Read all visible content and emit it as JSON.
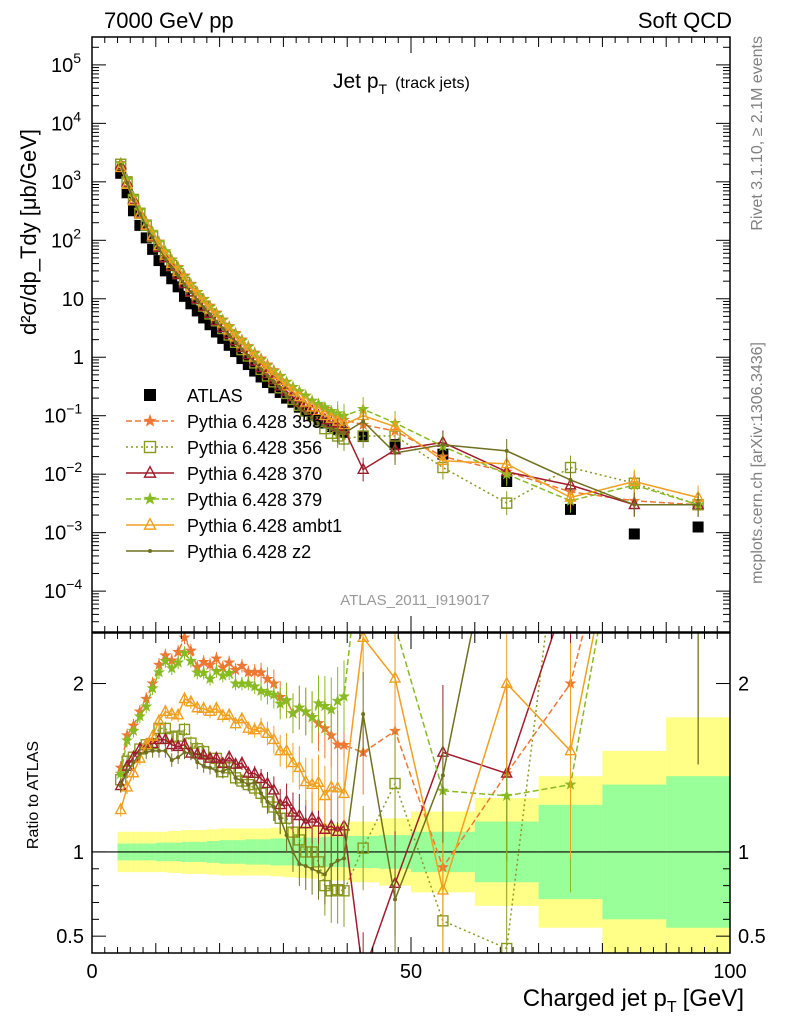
{
  "header": {
    "left": "7000 GeV pp",
    "right": "Soft QCD"
  },
  "side_labels": {
    "rivet": "Rivet 3.1.10, ≥ 2.1M events",
    "mcplots": "mcplots.cern.ch [arXiv:1306.3436]"
  },
  "chart_data": [
    {
      "type": "scatter",
      "panel": "main",
      "title": "Jet pT (track jets)",
      "title_main": "Jet p",
      "title_sub": "T",
      "title_note": "(track jets)",
      "ylabel": "d²σ/dp_Tdy [μb/GeV]",
      "yscale": "log",
      "ylim": [
        2e-05,
        300000
      ],
      "xlim": [
        0,
        100
      ],
      "analysis_label": "ATLAS_2011_I919017",
      "legend_position": "middle-left",
      "series": [
        {
          "name": "ATLAS",
          "color": "#000000",
          "marker": "square",
          "x": [
            4.5,
            5.5,
            6.5,
            7.5,
            8.5,
            9.5,
            10.5,
            11.5,
            12.5,
            13.5,
            14.5,
            15.5,
            16.5,
            17.5,
            18.5,
            19.5,
            20.5,
            21.5,
            22.5,
            23.5,
            24.5,
            25.5,
            26.5,
            27.5,
            28.5,
            29.5,
            30.5,
            31.5,
            32.5,
            33.5,
            34.5,
            35.5,
            36.5,
            37.5,
            38.5,
            39.5,
            42.5,
            47.5,
            55,
            65,
            75,
            85,
            95
          ],
          "y": [
            1400,
            650,
            320,
            180,
            110,
            70,
            45,
            30,
            22,
            16,
            11,
            8.2,
            6.2,
            4.7,
            3.6,
            2.7,
            2.1,
            1.6,
            1.25,
            0.95,
            0.75,
            0.58,
            0.46,
            0.37,
            0.3,
            0.25,
            0.2,
            0.17,
            0.14,
            0.12,
            0.1,
            0.085,
            0.075,
            0.065,
            0.058,
            0.052,
            0.044,
            0.032,
            0.022,
            0.0075,
            0.0025,
            0.00095,
            0.00125
          ]
        },
        {
          "name": "Pythia 6.428 355",
          "color": "#ee7733",
          "marker": "star",
          "dash": "6,3",
          "x": [
            4.5,
            5.5,
            6.5,
            7.5,
            8.5,
            9.5,
            10.5,
            11.5,
            12.5,
            13.5,
            14.5,
            15.5,
            16.5,
            17.5,
            18.5,
            19.5,
            20.5,
            21.5,
            22.5,
            23.5,
            24.5,
            25.5,
            26.5,
            27.5,
            28.5,
            29.5,
            30.5,
            31.5,
            32.5,
            33.5,
            34.5,
            35.5,
            36.5,
            37.5,
            38.5,
            39.5,
            42.5,
            47.5,
            55,
            65,
            75,
            85,
            95
          ],
          "y": [
            2100,
            1100,
            560,
            330,
            210,
            140,
            95,
            65,
            47,
            35,
            25,
            18,
            13,
            10,
            7.6,
            5.8,
            4.4,
            3.4,
            2.6,
            2.0,
            1.55,
            1.2,
            0.95,
            0.75,
            0.6,
            0.48,
            0.38,
            0.31,
            0.26,
            0.22,
            0.18,
            0.15,
            0.13,
            0.11,
            0.095,
            0.085,
            0.07,
            0.055,
            0.02,
            0.011,
            0.005,
            0.0035,
            0.003
          ]
        },
        {
          "name": "Pythia 6.428 356",
          "color": "#8a9a20",
          "marker": "open-square",
          "dash": "2,3",
          "x": [
            4.5,
            5.5,
            6.5,
            7.5,
            8.5,
            9.5,
            10.5,
            11.5,
            12.5,
            13.5,
            14.5,
            15.5,
            16.5,
            17.5,
            18.5,
            19.5,
            20.5,
            21.5,
            22.5,
            23.5,
            24.5,
            25.5,
            26.5,
            27.5,
            28.5,
            29.5,
            30.5,
            31.5,
            32.5,
            33.5,
            34.5,
            35.5,
            36.5,
            37.5,
            38.5,
            39.5,
            42.5,
            47.5,
            55,
            65,
            75,
            85,
            95
          ],
          "y": [
            2000,
            1000,
            500,
            290,
            180,
            115,
            78,
            52,
            37,
            27,
            19,
            13.5,
            10,
            7.5,
            5.5,
            4.2,
            3.1,
            2.4,
            1.8,
            1.35,
            1.05,
            0.8,
            0.62,
            0.48,
            0.38,
            0.3,
            0.24,
            0.19,
            0.15,
            0.12,
            0.1,
            0.08,
            0.06,
            0.05,
            0.045,
            0.04,
            0.045,
            0.045,
            0.013,
            0.0032,
            0.013,
            0.007,
            0.003
          ]
        },
        {
          "name": "Pythia 6.428 370",
          "color": "#a01c2c",
          "marker": "open-triangle",
          "dash": "",
          "x": [
            4.5,
            5.5,
            6.5,
            7.5,
            8.5,
            9.5,
            10.5,
            11.5,
            12.5,
            13.5,
            14.5,
            15.5,
            16.5,
            17.5,
            18.5,
            19.5,
            20.5,
            21.5,
            22.5,
            23.5,
            24.5,
            25.5,
            26.5,
            27.5,
            28.5,
            29.5,
            30.5,
            31.5,
            32.5,
            33.5,
            34.5,
            35.5,
            36.5,
            37.5,
            38.5,
            39.5,
            42.5,
            47.5,
            55,
            65,
            75,
            85,
            95
          ],
          "y": [
            1950,
            980,
            500,
            290,
            180,
            115,
            75,
            50,
            36,
            26,
            18,
            13,
            9.8,
            7.4,
            5.6,
            4.2,
            3.2,
            2.5,
            1.9,
            1.45,
            1.1,
            0.85,
            0.66,
            0.52,
            0.41,
            0.32,
            0.26,
            0.21,
            0.17,
            0.14,
            0.12,
            0.1,
            0.085,
            0.075,
            0.065,
            0.06,
            0.012,
            0.026,
            0.035,
            0.011,
            0.0065,
            0.003,
            0.003
          ]
        },
        {
          "name": "Pythia 6.428 379",
          "color": "#88bb22",
          "marker": "star",
          "dash": "6,3",
          "x": [
            4.5,
            5.5,
            6.5,
            7.5,
            8.5,
            9.5,
            10.5,
            11.5,
            12.5,
            13.5,
            14.5,
            15.5,
            16.5,
            17.5,
            18.5,
            19.5,
            20.5,
            21.5,
            22.5,
            23.5,
            24.5,
            25.5,
            26.5,
            27.5,
            28.5,
            29.5,
            30.5,
            31.5,
            32.5,
            33.5,
            34.5,
            35.5,
            36.5,
            37.5,
            38.5,
            39.5,
            42.5,
            47.5,
            55,
            65,
            75,
            85,
            95
          ],
          "y": [
            2050,
            1080,
            550,
            325,
            205,
            138,
            93,
            64,
            46,
            34,
            24,
            17.5,
            12.8,
            9.7,
            7.3,
            5.6,
            4.3,
            3.3,
            2.5,
            1.9,
            1.5,
            1.15,
            0.9,
            0.72,
            0.58,
            0.47,
            0.38,
            0.31,
            0.26,
            0.22,
            0.18,
            0.16,
            0.14,
            0.12,
            0.11,
            0.1,
            0.13,
            0.075,
            0.03,
            0.01,
            0.0035,
            0.0065,
            0.003
          ]
        },
        {
          "name": "Pythia 6.428 ambt1",
          "color": "#f0a020",
          "marker": "open-triangle",
          "dash": "",
          "x": [
            4.5,
            5.5,
            6.5,
            7.5,
            8.5,
            9.5,
            10.5,
            11.5,
            12.5,
            13.5,
            14.5,
            15.5,
            16.5,
            17.5,
            18.5,
            19.5,
            20.5,
            21.5,
            22.5,
            23.5,
            24.5,
            25.5,
            26.5,
            27.5,
            28.5,
            29.5,
            30.5,
            31.5,
            32.5,
            33.5,
            34.5,
            35.5,
            36.5,
            37.5,
            38.5,
            39.5,
            42.5,
            47.5,
            55,
            65,
            75,
            85,
            95
          ],
          "y": [
            1750,
            900,
            470,
            280,
            180,
            118,
            80,
            55,
            40,
            29,
            21,
            15.5,
            11.5,
            8.7,
            6.6,
            5,
            3.8,
            2.9,
            2.2,
            1.7,
            1.3,
            1.0,
            0.8,
            0.63,
            0.5,
            0.4,
            0.32,
            0.26,
            0.21,
            0.17,
            0.14,
            0.12,
            0.1,
            0.09,
            0.08,
            0.07,
            0.1,
            0.065,
            0.017,
            0.015,
            0.004,
            0.0075,
            0.004
          ]
        },
        {
          "name": "Pythia 6.428 z2",
          "color": "#707020",
          "marker": "dot",
          "dash": "",
          "x": [
            4.5,
            5.5,
            6.5,
            7.5,
            8.5,
            9.5,
            10.5,
            11.5,
            12.5,
            13.5,
            14.5,
            15.5,
            16.5,
            17.5,
            18.5,
            19.5,
            20.5,
            21.5,
            22.5,
            23.5,
            24.5,
            25.5,
            26.5,
            27.5,
            28.5,
            29.5,
            30.5,
            31.5,
            32.5,
            33.5,
            34.5,
            35.5,
            36.5,
            37.5,
            38.5,
            39.5,
            42.5,
            47.5,
            55,
            65,
            75,
            85,
            95
          ],
          "y": [
            1950,
            960,
            490,
            285,
            175,
            112,
            72,
            48,
            34,
            25,
            17.5,
            13,
            9.5,
            7.1,
            5.4,
            4.0,
            3.1,
            2.4,
            1.8,
            1.35,
            1.05,
            0.82,
            0.62,
            0.48,
            0.38,
            0.3,
            0.22,
            0.17,
            0.13,
            0.11,
            0.09,
            0.075,
            0.065,
            0.06,
            0.055,
            0.05,
            0.08,
            0.023,
            0.032,
            0.025,
            0.008,
            0.003,
            0.003
          ]
        }
      ]
    },
    {
      "type": "line",
      "panel": "ratio",
      "ylabel": "Ratio to ATLAS",
      "xlabel": "Charged jet pT [GeV]",
      "xlabel_main": "Charged jet p",
      "xlabel_sub": "T",
      "xlabel_unit": "[GeV]",
      "ylim": [
        0.4,
        2.3
      ],
      "xlim": [
        0,
        100
      ],
      "x_ticks": [
        0,
        50,
        100
      ],
      "y_ticks": [
        0.5,
        1,
        2
      ],
      "reference_line": 1,
      "bands": {
        "edges": [
          4,
          5,
          6,
          7,
          8,
          9,
          10,
          11,
          12,
          13,
          14,
          15,
          16,
          17,
          18,
          19,
          20,
          22,
          24,
          26,
          28,
          30,
          32,
          34,
          36,
          38,
          40,
          45,
          50,
          60,
          70,
          80,
          90,
          100
        ],
        "inner_color": "#99ff99",
        "outer_color": "#ffff88",
        "inner": [
          0.05,
          0.05,
          0.05,
          0.05,
          0.05,
          0.05,
          0.055,
          0.055,
          0.055,
          0.055,
          0.06,
          0.06,
          0.06,
          0.06,
          0.065,
          0.065,
          0.07,
          0.07,
          0.075,
          0.075,
          0.08,
          0.08,
          0.085,
          0.085,
          0.09,
          0.09,
          0.095,
          0.1,
          0.12,
          0.18,
          0.28,
          0.4,
          0.45
        ],
        "outer": [
          0.12,
          0.12,
          0.12,
          0.12,
          0.12,
          0.12,
          0.12,
          0.12,
          0.125,
          0.125,
          0.13,
          0.13,
          0.13,
          0.13,
          0.135,
          0.135,
          0.14,
          0.14,
          0.14,
          0.14,
          0.145,
          0.15,
          0.155,
          0.16,
          0.17,
          0.17,
          0.18,
          0.2,
          0.24,
          0.32,
          0.45,
          0.6,
          0.8
        ]
      }
    }
  ]
}
